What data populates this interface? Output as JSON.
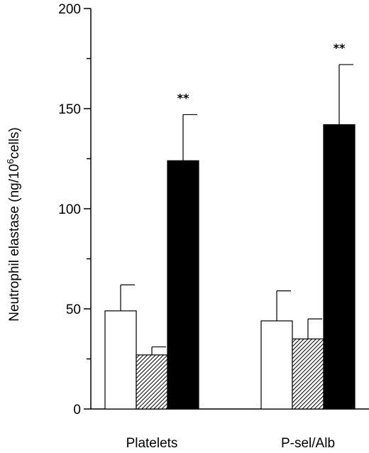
{
  "chart_data": {
    "type": "bar",
    "categories": [
      "Platelets",
      "P-sel/Alb"
    ],
    "series": [
      {
        "values": [
          49,
          44
        ],
        "errors": [
          13,
          15
        ],
        "fill": "#ffffff"
      },
      {
        "values": [
          27,
          35
        ],
        "errors": [
          4,
          10
        ],
        "fill": "hatched"
      },
      {
        "values": [
          124,
          142
        ],
        "errors": [
          23,
          30
        ],
        "fill": "#000000"
      }
    ],
    "annotations": [
      {
        "category": 0,
        "series": 2,
        "text": "**"
      },
      {
        "category": 1,
        "series": 2,
        "text": "**"
      }
    ],
    "ylabel_main": "Neutrophil elastase  (ng/10",
    "ylabel_sup": "6",
    "ylabel_tail": "cells)",
    "ylim": [
      0,
      200
    ],
    "yticks": [
      0,
      50,
      100,
      150,
      200
    ],
    "grid": false,
    "legend": "none"
  }
}
